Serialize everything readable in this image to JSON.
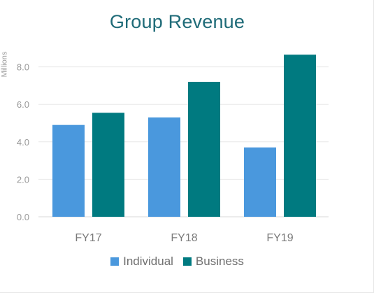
{
  "chart_data": {
    "type": "bar",
    "title": "Group Revenue",
    "ylabel": "Millions",
    "xlabel": "",
    "categories": [
      "FY17",
      "FY18",
      "FY19"
    ],
    "series": [
      {
        "name": "Individual",
        "values": [
          4.9,
          5.3,
          3.7
        ],
        "color": "#4a98dd"
      },
      {
        "name": "Business",
        "values": [
          5.55,
          7.2,
          8.65
        ],
        "color": "#007a80"
      }
    ],
    "ylim": [
      0,
      9
    ],
    "yticks": [
      "0.0",
      "2.0",
      "4.0",
      "6.0",
      "8.0"
    ],
    "grid": true,
    "legend_position": "bottom"
  }
}
